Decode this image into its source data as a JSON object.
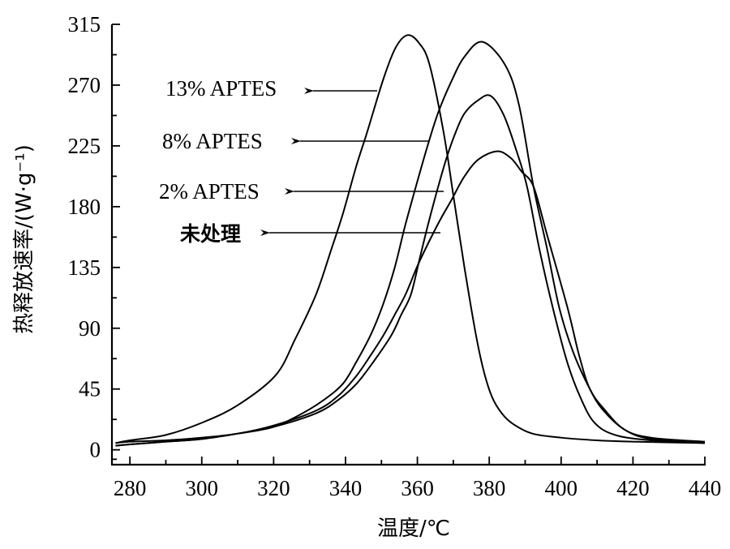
{
  "chart_data": {
    "type": "line",
    "title": "",
    "xlabel": "温度/℃",
    "ylabel": "热释放速率/(W·g⁻¹)",
    "xlim": [
      275,
      440
    ],
    "ylim": [
      -11,
      315
    ],
    "xticks": [
      280,
      300,
      320,
      340,
      360,
      380,
      400,
      420,
      440
    ],
    "yticks": [
      0,
      45,
      90,
      135,
      180,
      225,
      270,
      315
    ],
    "grid": false,
    "series": [
      {
        "name": "13% APTES",
        "x": [
          276,
          280,
          290,
          300,
          310,
          320.5,
          326,
          331.8,
          336,
          339.3,
          343,
          346,
          350.6,
          354,
          357.3,
          360.5,
          363.4,
          367.3,
          370.2,
          373.1,
          376.3,
          378.5,
          380.8,
          383.5,
          386.7,
          392,
          400,
          410,
          420,
          440
        ],
        "y": [
          5,
          7,
          11,
          20,
          33,
          55,
          82,
          115,
          148,
          175,
          210,
          235,
          275,
          298,
          307,
          301,
          285,
          235,
          185,
          135,
          85,
          58,
          39,
          27,
          19,
          12,
          9,
          7,
          6,
          5
        ]
      },
      {
        "name": "8% APTES",
        "x": [
          276,
          280,
          290,
          300,
          310,
          320,
          328,
          334,
          339.3,
          343,
          347,
          350.5,
          353.7,
          356.5,
          359.6,
          362.5,
          365.7,
          369.5,
          373.1,
          378.1,
          384.4,
          388.3,
          392.3,
          396,
          399.5,
          403.4,
          408,
          411.5,
          417.6,
          425,
          440
        ],
        "y": [
          3,
          4,
          6,
          8,
          12,
          17,
          27,
          37,
          49,
          65,
          85,
          108,
          135,
          165,
          195,
          222,
          249,
          273,
          291,
          302,
          285,
          255,
          195,
          150,
          105,
          72,
          45,
          30,
          15,
          8,
          5
        ]
      },
      {
        "name": "2% APTES",
        "x": [
          276,
          280,
          290,
          300,
          310,
          320,
          331.8,
          338,
          343.1,
          348,
          352.8,
          355.5,
          358.2,
          360.5,
          362.8,
          365.5,
          368,
          370.5,
          373.1,
          377,
          380.4,
          384,
          387.5,
          390.5,
          394,
          397.7,
          401.8,
          405.5,
          409.3,
          415,
          425,
          440
        ],
        "y": [
          3,
          4,
          6,
          8,
          12,
          17,
          27,
          37,
          49,
          66,
          85,
          100,
          115,
          140,
          165,
          192,
          215,
          234,
          249,
          259,
          262,
          248,
          222,
          195,
          148,
          105,
          64,
          38,
          20,
          11,
          7,
          5
        ]
      },
      {
        "name": "未处理",
        "x": [
          276,
          280,
          290,
          300,
          310,
          320,
          331.8,
          338,
          343.1,
          347,
          350.6,
          353.7,
          356.7,
          360,
          363.4,
          366.5,
          369.5,
          373,
          377,
          382.2,
          386,
          389,
          392.3,
          396,
          401.8,
          405,
          408,
          412,
          417.6,
          425,
          440
        ],
        "y": [
          5,
          6,
          7,
          9,
          12,
          18,
          29,
          40,
          55,
          70,
          85,
          100,
          115,
          136,
          155,
          171,
          185,
          202,
          215,
          221,
          216,
          206,
          195,
          160,
          105,
          70,
          45,
          30,
          15,
          9,
          6
        ]
      }
    ],
    "annotations": [
      {
        "text": "13% APTES",
        "target_series": "13% APTES"
      },
      {
        "text": "8% APTES",
        "target_series": "8% APTES"
      },
      {
        "text": "2% APTES",
        "target_series": "2% APTES"
      },
      {
        "text": "未处理",
        "target_series": "未处理"
      }
    ],
    "legend": "none"
  }
}
